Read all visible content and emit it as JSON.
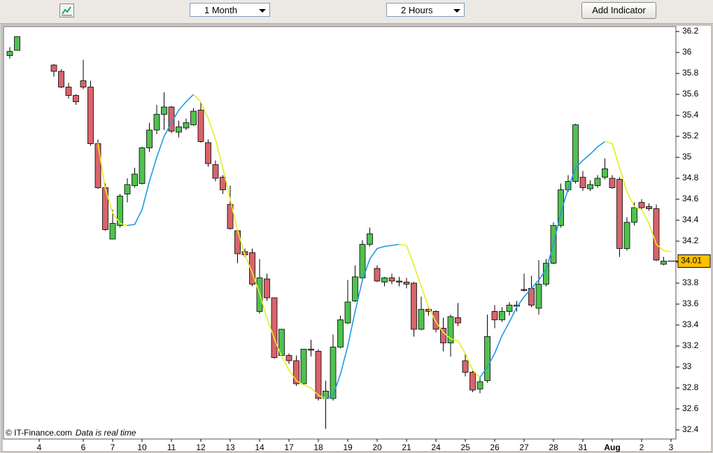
{
  "toolbar": {
    "period": "1 Month",
    "interval": "2 Hours",
    "button": "Add Indicator"
  },
  "chart_data": {
    "type": "candlestick",
    "categories": [
      null,
      null,
      null,
      null,
      "4",
      null,
      null,
      null,
      null,
      null,
      "6",
      null,
      null,
      null,
      "7",
      null,
      null,
      null,
      "10",
      null,
      null,
      null,
      "11",
      null,
      null,
      null,
      "12",
      null,
      null,
      null,
      "13",
      null,
      null,
      null,
      "14",
      null,
      null,
      null,
      "17",
      null,
      null,
      null,
      "18",
      null,
      null,
      null,
      "19",
      null,
      null,
      null,
      "20",
      null,
      null,
      null,
      "21",
      null,
      null,
      null,
      "24",
      null,
      null,
      null,
      "25",
      null,
      null,
      null,
      "26",
      null,
      null,
      null,
      "27",
      null,
      null,
      null,
      "28",
      null,
      null,
      null,
      "31",
      null,
      null,
      null,
      "Aug",
      null,
      null,
      null,
      "2",
      null,
      null,
      null,
      "3"
    ],
    "open": [
      35.97,
      36.02,
      null,
      null,
      null,
      null,
      35.88,
      35.82,
      35.67,
      35.59,
      35.73,
      35.67,
      35.13,
      34.71,
      34.22,
      34.35,
      34.65,
      34.73,
      34.75,
      35.09,
      35.26,
      35.41,
      35.48,
      35.24,
      35.28,
      35.31,
      35.45,
      35.14,
      34.93,
      34.81,
      34.55,
      34.3,
      34.1,
      34.09,
      33.53,
      33.84,
      33.66,
      33.11,
      33.11,
      33.06,
      32.84,
      33.17,
      33.15,
      32.7,
      32.7,
      33.19,
      33.42,
      33.63,
      33.85,
      34.17,
      33.94,
      33.81,
      33.85,
      33.82,
      33.81,
      33.8,
      33.36,
      33.55,
      33.53,
      33.37,
      33.23,
      33.47,
      33.06,
      32.95,
      32.79,
      32.87,
      33.53,
      33.45,
      33.53,
      33.59,
      33.74,
      33.75,
      33.56,
      33.79,
      33.99,
      34.35,
      34.69,
      34.77,
      34.81,
      34.7,
      34.73,
      34.81,
      34.8,
      34.79,
      34.13,
      34.38,
      34.57,
      34.53,
      34.51,
      33.98,
      null
    ],
    "high": [
      36.05,
      36.15,
      null,
      null,
      null,
      null,
      35.89,
      35.84,
      35.71,
      35.6,
      35.93,
      35.73,
      35.17,
      34.75,
      34.5,
      34.65,
      34.8,
      34.9,
      35.1,
      35.33,
      35.5,
      35.62,
      35.49,
      35.35,
      35.37,
      35.47,
      35.53,
      35.17,
      34.97,
      34.83,
      34.73,
      34.31,
      34.13,
      34.13,
      34.03,
      33.89,
      33.66,
      33.36,
      33.13,
      33.11,
      33.17,
      33.26,
      33.17,
      32.87,
      33.31,
      33.49,
      33.83,
      33.97,
      34.21,
      34.33,
      33.97,
      33.86,
      33.89,
      33.86,
      33.85,
      33.81,
      33.67,
      33.58,
      33.54,
      33.47,
      33.5,
      33.61,
      33.13,
      32.97,
      32.9,
      33.5,
      33.59,
      33.57,
      33.62,
      33.63,
      33.89,
      33.87,
      34.02,
      34.03,
      34.38,
      34.75,
      34.83,
      35.32,
      34.87,
      34.78,
      34.83,
      34.99,
      34.83,
      34.81,
      34.43,
      34.57,
      34.6,
      34.56,
      34.55,
      34.05,
      null
    ],
    "low": [
      35.94,
      36.02,
      null,
      null,
      null,
      null,
      35.77,
      35.66,
      35.56,
      35.5,
      35.65,
      35.11,
      34.7,
      34.3,
      34.22,
      34.33,
      34.57,
      34.71,
      34.74,
      35.05,
      35.22,
      35.26,
      35.23,
      35.19,
      35.26,
      35.3,
      35.14,
      34.91,
      34.77,
      34.65,
      34.31,
      33.99,
      34.05,
      33.77,
      33.51,
      33.63,
      33.08,
      33.1,
      33.03,
      32.82,
      32.83,
      33.1,
      32.68,
      32.41,
      32.68,
      33.18,
      33.41,
      33.62,
      33.83,
      34.15,
      33.81,
      33.77,
      33.79,
      33.77,
      33.75,
      33.29,
      33.35,
      33.49,
      33.33,
      33.15,
      33.1,
      33.39,
      32.91,
      32.76,
      32.75,
      32.85,
      33.37,
      33.43,
      33.49,
      33.53,
      33.72,
      33.57,
      33.5,
      33.77,
      33.98,
      34.33,
      34.67,
      34.75,
      34.68,
      34.68,
      34.71,
      34.79,
      34.7,
      34.05,
      34.11,
      34.35,
      34.5,
      34.49,
      34.01,
      33.97,
      null
    ],
    "close": [
      36.01,
      36.15,
      null,
      null,
      null,
      null,
      35.82,
      35.67,
      35.59,
      35.53,
      35.67,
      35.13,
      34.71,
      34.31,
      34.37,
      34.63,
      34.74,
      34.84,
      35.09,
      35.26,
      35.41,
      35.48,
      35.25,
      35.29,
      35.33,
      35.44,
      35.15,
      34.94,
      34.8,
      34.69,
      34.32,
      34.08,
      34.07,
      33.79,
      33.85,
      33.66,
      33.09,
      33.36,
      33.06,
      32.84,
      33.17,
      33.16,
      32.7,
      32.77,
      33.19,
      33.45,
      33.62,
      33.86,
      34.17,
      34.27,
      33.82,
      33.85,
      33.82,
      33.81,
      33.79,
      33.36,
      33.55,
      33.53,
      33.36,
      33.23,
      33.48,
      33.42,
      32.95,
      32.78,
      32.86,
      33.29,
      33.45,
      33.53,
      33.59,
      33.58,
      33.73,
      33.59,
      33.79,
      33.99,
      34.35,
      34.69,
      34.77,
      35.31,
      34.71,
      34.74,
      34.8,
      34.89,
      34.71,
      34.13,
      34.38,
      34.52,
      34.52,
      34.51,
      34.02,
      34.01,
      null
    ],
    "up_color": "#4fc24f",
    "down_color": "#d9646b",
    "ma": {
      "values": [
        null,
        null,
        null,
        null,
        null,
        null,
        null,
        null,
        null,
        null,
        null,
        null,
        35.13,
        34.7,
        34.47,
        34.37,
        34.35,
        34.36,
        34.5,
        34.77,
        35.0,
        35.2,
        35.33,
        35.45,
        35.53,
        35.6,
        35.53,
        35.37,
        35.17,
        34.9,
        34.6,
        34.3,
        34.07,
        33.9,
        33.7,
        33.47,
        33.27,
        33.1,
        32.97,
        32.87,
        32.83,
        32.8,
        32.73,
        32.7,
        32.73,
        32.93,
        33.2,
        33.53,
        33.83,
        34.03,
        34.13,
        34.15,
        34.16,
        34.17,
        34.16,
        33.97,
        33.77,
        33.57,
        33.43,
        33.33,
        33.27,
        33.25,
        33.13,
        32.97,
        32.9,
        33.0,
        33.13,
        33.3,
        33.43,
        33.57,
        33.67,
        33.75,
        33.83,
        33.93,
        34.17,
        34.47,
        34.7,
        34.9,
        34.97,
        35.03,
        35.1,
        35.15,
        35.13,
        34.9,
        34.67,
        34.53,
        34.5,
        34.37,
        34.17,
        34.11,
        34.1
      ],
      "rising_color": "#1e9be6",
      "falling_color": "#e2f020"
    },
    "ylim": [
      32.313,
      36.247
    ],
    "yticks": [
      32.4,
      32.6,
      32.8,
      33,
      33.2,
      33.4,
      33.6,
      33.8,
      34,
      34.2,
      34.4,
      34.6,
      34.8,
      35,
      35.2,
      35.4,
      35.6,
      35.8,
      36,
      36.2
    ],
    "last_price": 34.01,
    "last_price_color": "#ffc000"
  },
  "footer": {
    "copyright": "© IT-Finance.com",
    "note": "Data is real time"
  }
}
